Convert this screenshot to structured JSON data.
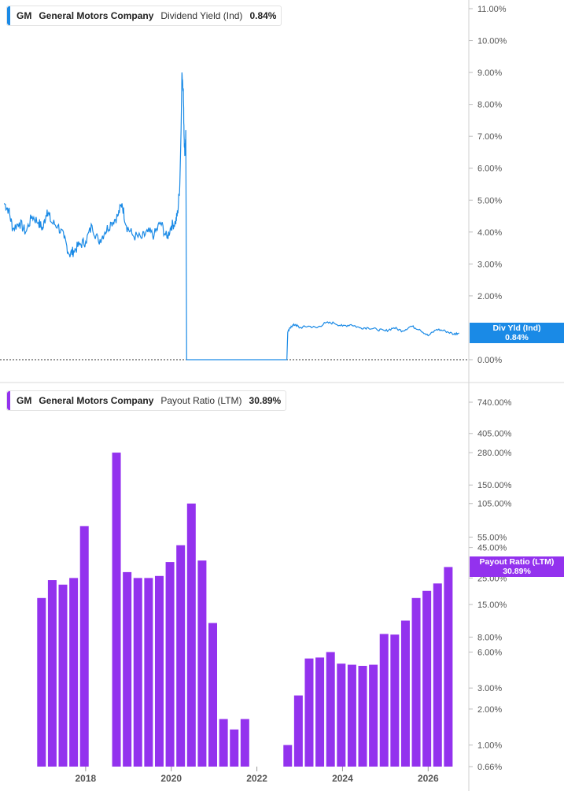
{
  "colors": {
    "line": "#1a8ae6",
    "bar": "#9332ee",
    "axis_text": "#555555",
    "tag_top": "#1a8ae6",
    "tag_bottom": "#9332ee"
  },
  "legend_top": {
    "ticker": "GM",
    "company": "General Motors Company",
    "metric": "Dividend Yield (Ind)",
    "value": "0.84%"
  },
  "legend_bottom": {
    "ticker": "GM",
    "company": "General Motors Company",
    "metric": "Payout Ratio (LTM)",
    "value": "30.89%"
  },
  "tag_top": {
    "label": "Div Yld (Ind)",
    "value": "0.84%"
  },
  "tag_bottom": {
    "label": "Payout Ratio (LTM)",
    "value": "30.89%"
  },
  "chart_data": [
    {
      "type": "line",
      "title": "",
      "series": [
        {
          "name": "Dividend Yield (Ind)",
          "points": [
            [
              2016.1,
              4.9
            ],
            [
              2016.2,
              4.7
            ],
            [
              2016.3,
              4.1
            ],
            [
              2016.45,
              4.3
            ],
            [
              2016.6,
              4.0
            ],
            [
              2016.75,
              4.5
            ],
            [
              2016.9,
              4.3
            ],
            [
              2017.0,
              4.1
            ],
            [
              2017.1,
              4.7
            ],
            [
              2017.2,
              4.3
            ],
            [
              2017.35,
              4.2
            ],
            [
              2017.5,
              3.8
            ],
            [
              2017.62,
              3.3
            ],
            [
              2017.72,
              3.4
            ],
            [
              2017.85,
              3.6
            ],
            [
              2018.0,
              3.7
            ],
            [
              2018.15,
              4.2
            ],
            [
              2018.3,
              3.7
            ],
            [
              2018.45,
              4.0
            ],
            [
              2018.6,
              4.3
            ],
            [
              2018.75,
              4.5
            ],
            [
              2018.85,
              4.9
            ],
            [
              2018.95,
              4.2
            ],
            [
              2019.1,
              3.9
            ],
            [
              2019.3,
              3.8
            ],
            [
              2019.45,
              4.0
            ],
            [
              2019.6,
              3.9
            ],
            [
              2019.75,
              4.3
            ],
            [
              2019.9,
              3.8
            ],
            [
              2020.0,
              4.2
            ],
            [
              2020.1,
              4.3
            ],
            [
              2020.15,
              4.6
            ],
            [
              2020.2,
              5.5
            ],
            [
              2020.23,
              7.2
            ],
            [
              2020.25,
              9.0
            ],
            [
              2020.28,
              8.5
            ],
            [
              2020.3,
              7.0
            ],
            [
              2020.32,
              6.4
            ],
            [
              2020.34,
              7.2
            ],
            [
              2020.36,
              0.0
            ],
            [
              2022.7,
              0.0
            ],
            [
              2022.72,
              0.85
            ],
            [
              2022.8,
              1.05
            ],
            [
              2022.9,
              1.1
            ],
            [
              2023.0,
              1.0
            ],
            [
              2023.2,
              1.05
            ],
            [
              2023.4,
              1.0
            ],
            [
              2023.6,
              1.15
            ],
            [
              2023.8,
              1.15
            ],
            [
              2024.0,
              1.05
            ],
            [
              2024.2,
              1.1
            ],
            [
              2024.4,
              1.0
            ],
            [
              2024.6,
              1.0
            ],
            [
              2024.8,
              0.95
            ],
            [
              2025.0,
              0.9
            ],
            [
              2025.2,
              1.0
            ],
            [
              2025.4,
              0.9
            ],
            [
              2025.6,
              1.05
            ],
            [
              2025.8,
              0.95
            ],
            [
              2026.0,
              0.75
            ],
            [
              2026.2,
              0.95
            ],
            [
              2026.4,
              0.9
            ],
            [
              2026.6,
              0.8
            ],
            [
              2026.72,
              0.84
            ]
          ]
        }
      ],
      "x_range": [
        2016.0,
        2026.95
      ],
      "ylim": [
        0,
        11
      ],
      "y_ticks": [
        "11.00%",
        "10.00%",
        "9.00%",
        "8.00%",
        "7.00%",
        "6.00%",
        "5.00%",
        "4.00%",
        "3.00%",
        "2.00%",
        "0.00%"
      ],
      "y_tick_values": [
        11,
        10,
        9,
        8,
        7,
        6,
        5,
        4,
        3,
        2,
        0
      ],
      "current_value": 0.84
    },
    {
      "type": "bar",
      "title": "",
      "y_scale": "log",
      "ylim": [
        0.66,
        1000
      ],
      "x_range": [
        2016.0,
        2026.95
      ],
      "x_ticks": [
        "2018",
        "2020",
        "2022",
        "2024",
        "2026"
      ],
      "x_tick_values": [
        2018,
        2020,
        2022,
        2024,
        2026
      ],
      "y_ticks": [
        "740.00%",
        "405.00%",
        "280.00%",
        "150.00%",
        "105.00%",
        "55.00%",
        "45.00%",
        "25.00%",
        "15.00%",
        "8.00%",
        "6.00%",
        "3.00%",
        "2.00%",
        "1.00%",
        "0.66%"
      ],
      "y_tick_values": [
        740,
        405,
        280,
        150,
        105,
        55,
        45,
        25,
        15,
        8,
        6,
        3,
        2,
        1,
        0.66
      ],
      "series": [
        {
          "name": "Payout Ratio (LTM)",
          "bars": [
            [
              2016.97,
              17
            ],
            [
              2017.22,
              24
            ],
            [
              2017.47,
              22
            ],
            [
              2017.72,
              25
            ],
            [
              2017.97,
              68
            ],
            [
              2018.72,
              280
            ],
            [
              2018.97,
              28
            ],
            [
              2019.22,
              25
            ],
            [
              2019.47,
              25
            ],
            [
              2019.72,
              26
            ],
            [
              2019.97,
              34
            ],
            [
              2020.22,
              47
            ],
            [
              2020.47,
              105
            ],
            [
              2020.72,
              35
            ],
            [
              2020.97,
              10.5
            ],
            [
              2021.22,
              1.65
            ],
            [
              2021.47,
              1.35
            ],
            [
              2021.72,
              1.65
            ],
            [
              2022.72,
              1.0
            ],
            [
              2022.97,
              2.6
            ],
            [
              2023.22,
              5.3
            ],
            [
              2023.47,
              5.4
            ],
            [
              2023.72,
              6.0
            ],
            [
              2023.97,
              4.8
            ],
            [
              2024.22,
              4.7
            ],
            [
              2024.47,
              4.6
            ],
            [
              2024.72,
              4.7
            ],
            [
              2024.97,
              8.5
            ],
            [
              2025.22,
              8.4
            ],
            [
              2025.47,
              11
            ],
            [
              2025.72,
              17
            ],
            [
              2025.97,
              19.5
            ],
            [
              2026.22,
              22.5
            ],
            [
              2026.47,
              30.89
            ]
          ]
        }
      ],
      "current_value": 30.89
    }
  ]
}
